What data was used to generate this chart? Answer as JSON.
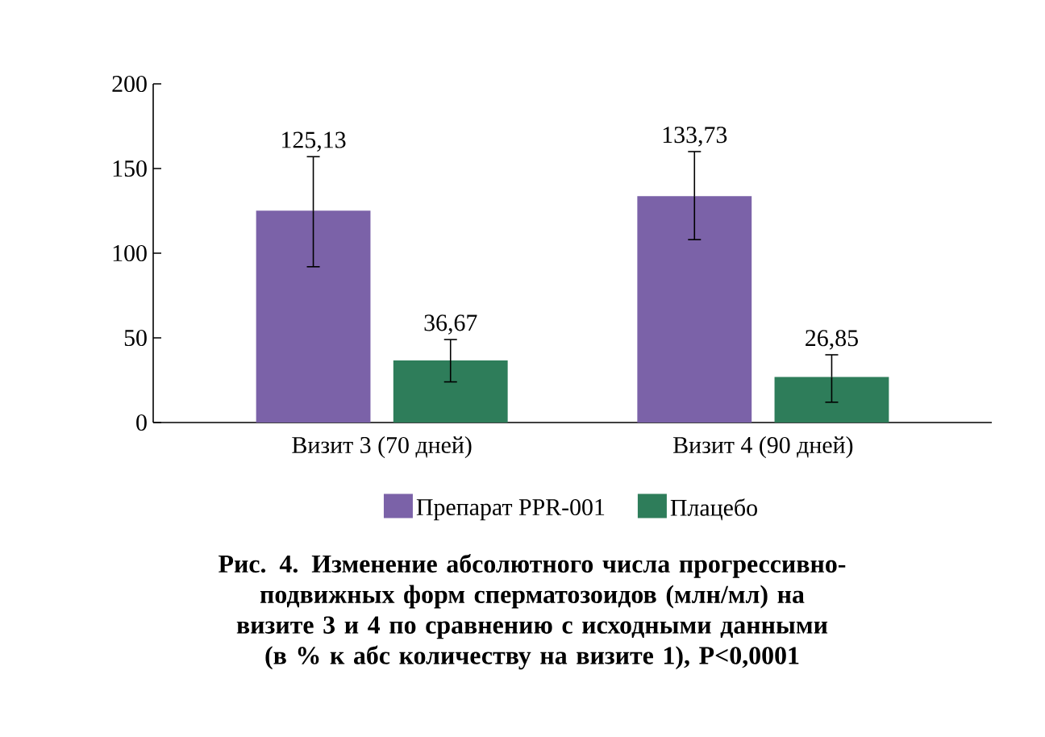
{
  "chart_data": {
    "type": "bar",
    "title": "Рис. 4. Изменение абсолютного числа прогрессивно-подвижных форм сперматозоидов (млн/мл) на визите 3 и 4 по сравнению с исходными данными (в % к абс количеству на визите 1), P<0,0001",
    "categories": [
      "Визит 3 (70 дней)",
      "Визит 4 (90 дней)"
    ],
    "series": [
      {
        "name": "Препарат PPR-001",
        "color": "#7b62a8",
        "values": [
          125.13,
          133.73
        ],
        "errors": [
          [
            92,
            157
          ],
          [
            108,
            160
          ]
        ],
        "value_labels": [
          "125,13",
          "133,73"
        ]
      },
      {
        "name": "Плацебо",
        "color": "#2e7d5a",
        "values": [
          36.67,
          26.85
        ],
        "errors": [
          [
            24,
            49
          ],
          [
            12,
            40
          ]
        ],
        "value_labels": [
          "36,67",
          "26,85"
        ]
      }
    ],
    "ylim": [
      0,
      200
    ],
    "yticks": [
      0,
      50,
      100,
      150,
      200
    ],
    "grid": false,
    "legend": "bottom"
  }
}
